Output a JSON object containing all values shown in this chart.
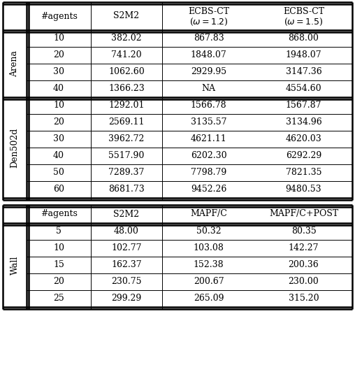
{
  "table1": {
    "sections": [
      {
        "label": "Arena",
        "rows": [
          [
            "10",
            "382.02",
            "867.83",
            "868.00"
          ],
          [
            "20",
            "741.20",
            "1848.07",
            "1948.07"
          ],
          [
            "30",
            "1062.60",
            "2929.95",
            "3147.36"
          ],
          [
            "40",
            "1366.23",
            "NA",
            "4554.60"
          ]
        ]
      },
      {
        "label": "Den502d",
        "rows": [
          [
            "10",
            "1292.01",
            "1566.78",
            "1567.87"
          ],
          [
            "20",
            "2569.11",
            "3135.57",
            "3134.96"
          ],
          [
            "30",
            "3962.72",
            "4621.11",
            "4620.03"
          ],
          [
            "40",
            "5517.90",
            "6202.30",
            "6292.29"
          ],
          [
            "50",
            "7289.37",
            "7798.79",
            "7821.35"
          ],
          [
            "60",
            "8681.73",
            "9452.26",
            "9480.53"
          ]
        ]
      }
    ]
  },
  "table2": {
    "sections": [
      {
        "label": "Wall",
        "rows": [
          [
            "5",
            "48.00",
            "50.32",
            "80.35"
          ],
          [
            "10",
            "102.77",
            "103.08",
            "142.27"
          ],
          [
            "15",
            "162.37",
            "152.38",
            "200.36"
          ],
          [
            "20",
            "230.75",
            "200.67",
            "230.00"
          ],
          [
            "25",
            "299.29",
            "265.09",
            "315.20"
          ]
        ]
      }
    ]
  }
}
